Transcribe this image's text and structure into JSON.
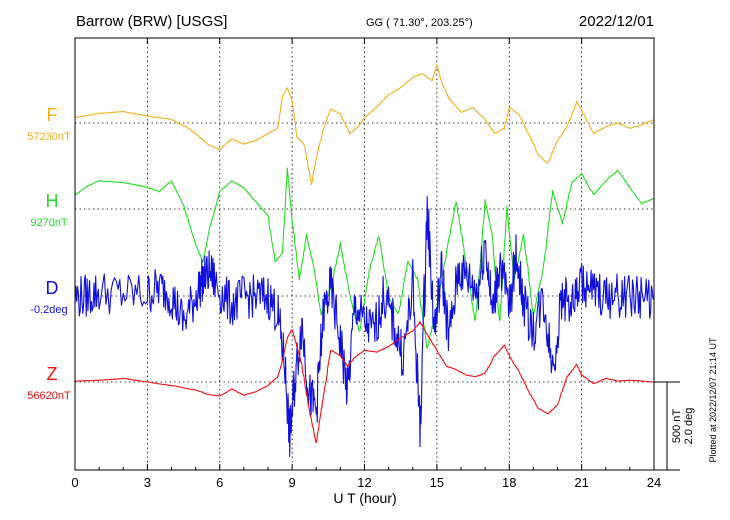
{
  "header": {
    "station": "Barrow (BRW)  [USGS]",
    "coords": "GG ( 71.30°, 203.25°)",
    "date": "2022/12/01"
  },
  "footer": {
    "plotted_at": "Plotted at 2022/12/07 21:14 UT"
  },
  "scale_bar": {
    "label_nt": "500 nT",
    "label_deg": "2.0 deg"
  },
  "chart_data": {
    "type": "line",
    "title": "Barrow (BRW)  [USGS]",
    "xlabel": "U T (hour)",
    "xlim": [
      0,
      24
    ],
    "x_ticks": [
      0,
      3,
      6,
      9,
      12,
      15,
      18,
      21,
      24
    ],
    "x_tick_labels": [
      "0",
      "3",
      "6",
      "9",
      "12",
      "15",
      "18",
      "21",
      "24"
    ],
    "grid": true,
    "scale_nt_per_division": 500,
    "scale_deg_per_division": 2.0,
    "series": [
      {
        "name": "F",
        "baseline_label": "57230nT",
        "unit": "nT",
        "color": "#f0b020",
        "x": [
          0,
          1,
          2,
          3,
          4,
          4.7,
          5,
          5.5,
          6,
          6.5,
          7,
          7.5,
          8,
          8.4,
          8.6,
          8.8,
          9,
          9.2,
          9.5,
          9.8,
          10,
          10.3,
          10.6,
          11,
          11.4,
          11.8,
          12,
          12.5,
          13,
          13.5,
          14,
          14.4,
          14.8,
          15,
          15.2,
          15.5,
          16,
          16.5,
          17,
          17.4,
          17.8,
          18,
          18.4,
          18.8,
          19.2,
          19.6,
          20,
          20.4,
          20.8,
          21,
          21.5,
          22,
          22.5,
          23,
          23.5,
          24
        ],
        "values": [
          30,
          55,
          65,
          40,
          20,
          -30,
          -60,
          -120,
          -150,
          -90,
          -120,
          -100,
          -60,
          -30,
          150,
          200,
          130,
          -80,
          -120,
          -350,
          -200,
          -30,
          80,
          50,
          -60,
          -10,
          30,
          90,
          160,
          200,
          260,
          280,
          240,
          330,
          230,
          140,
          60,
          90,
          20,
          -60,
          -30,
          90,
          50,
          -60,
          -180,
          -230,
          -100,
          -20,
          120,
          70,
          -60,
          -20,
          0,
          -30,
          -10,
          20
        ]
      },
      {
        "name": "H",
        "baseline_label": "9270nT",
        "unit": "nT",
        "color": "#22dd22",
        "x": [
          0,
          0.5,
          1,
          2,
          2.8,
          3.5,
          4,
          4.5,
          5,
          5.3,
          5.6,
          6,
          6.5,
          7,
          7.5,
          8,
          8.3,
          8.6,
          8.8,
          9,
          9.3,
          9.6,
          9.9,
          10.2,
          10.6,
          11,
          11.4,
          11.8,
          12.2,
          12.6,
          13,
          13.4,
          13.8,
          14.2,
          14.6,
          15,
          15.4,
          15.8,
          16.2,
          16.6,
          17,
          17.3,
          17.6,
          17.9,
          18.2,
          18.6,
          19,
          19.4,
          19.8,
          20.2,
          20.6,
          21,
          21.5,
          22,
          22.5,
          23,
          23.5,
          24
        ],
        "values": [
          80,
          130,
          160,
          150,
          130,
          100,
          160,
          20,
          -200,
          -300,
          -100,
          100,
          160,
          120,
          40,
          -40,
          -300,
          -250,
          230,
          -60,
          -400,
          -150,
          -330,
          -600,
          -450,
          -200,
          -500,
          -700,
          -350,
          -150,
          -500,
          -600,
          -300,
          -400,
          -800,
          -550,
          -250,
          50,
          -300,
          -650,
          50,
          -150,
          -650,
          0,
          -400,
          -150,
          -600,
          -350,
          100,
          -80,
          150,
          200,
          80,
          160,
          220,
          120,
          30,
          60
        ]
      },
      {
        "name": "D",
        "baseline_label": "-0.2deg",
        "unit": "deg",
        "color": "#1010dd",
        "x": [
          0,
          0.5,
          1,
          2,
          3,
          3.5,
          4,
          4.5,
          5,
          5.3,
          5.6,
          6,
          6.5,
          7,
          7.5,
          8,
          8.4,
          8.7,
          8.9,
          9.1,
          9.4,
          9.7,
          10,
          10.3,
          10.6,
          11,
          11.3,
          11.6,
          12,
          12.4,
          12.8,
          13.2,
          13.6,
          14,
          14.3,
          14.6,
          14.9,
          15.2,
          15.5,
          15.9,
          16.3,
          16.7,
          17,
          17.3,
          17.6,
          18,
          18.3,
          18.6,
          19,
          19.4,
          19.8,
          20.2,
          20.6,
          21,
          21.5,
          22,
          22.5,
          23,
          23.5,
          24
        ],
        "values": [
          -0.02,
          0.0,
          0.1,
          0.05,
          0.05,
          0.2,
          0.02,
          -0.6,
          0.0,
          0.4,
          0.55,
          0.1,
          -0.2,
          0.0,
          -0.02,
          0.0,
          -0.4,
          -1.6,
          -3.2,
          -2.0,
          -0.6,
          -2.2,
          -2.6,
          -0.4,
          0.2,
          -1.0,
          -2.2,
          -0.2,
          -0.6,
          -0.8,
          0.0,
          -0.6,
          -1.4,
          0.2,
          -3.0,
          2.0,
          -0.8,
          0.6,
          -1.0,
          0.6,
          0.4,
          0.1,
          1.3,
          -0.4,
          0.8,
          -0.3,
          1.0,
          -0.2,
          -0.8,
          0.0,
          -1.6,
          0.0,
          -0.2,
          0.3,
          0.1,
          -0.02,
          0.0,
          0.01,
          -0.02,
          0.0
        ]
      },
      {
        "name": "Z",
        "baseline_label": "56620nT",
        "unit": "nT",
        "color": "#ee1111",
        "x": [
          0,
          1,
          2,
          3,
          4,
          5,
          5.5,
          6,
          6.5,
          7,
          7.5,
          8,
          8.4,
          8.6,
          8.8,
          9,
          9.2,
          9.4,
          9.7,
          10,
          10.3,
          10.6,
          11,
          11.3,
          11.6,
          12,
          12.5,
          13,
          13.5,
          14,
          14.3,
          14.6,
          15,
          15.4,
          15.8,
          16.2,
          16.6,
          17,
          17.4,
          17.8,
          18,
          18.4,
          18.8,
          19.2,
          19.6,
          20,
          20.4,
          20.8,
          21,
          21.5,
          22,
          22.5,
          23,
          24
        ],
        "values": [
          5,
          10,
          20,
          0,
          -20,
          -45,
          -70,
          -80,
          -40,
          -75,
          -55,
          -20,
          30,
          120,
          250,
          300,
          200,
          100,
          -150,
          -350,
          -80,
          180,
          150,
          90,
          140,
          180,
          170,
          200,
          250,
          290,
          340,
          270,
          180,
          90,
          70,
          40,
          30,
          50,
          150,
          210,
          150,
          60,
          -50,
          -150,
          -180,
          -130,
          30,
          100,
          40,
          -10,
          20,
          5,
          10,
          0
        ]
      }
    ]
  }
}
